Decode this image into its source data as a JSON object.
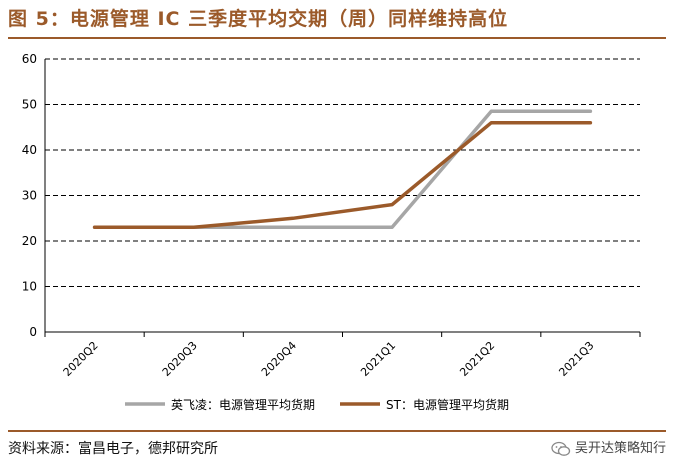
{
  "title": "图 5：电源管理 IC 三季度平均交期（周）同样维持高位",
  "source": "资料来源：富昌电子，德邦研究所",
  "watermark": {
    "text": "吴开达策略知行",
    "icon": "wechat-icon"
  },
  "colors": {
    "title": "#9b5a2a",
    "series1": "#a6a6a6",
    "series2": "#9b5a2a"
  },
  "chart_data": {
    "type": "line",
    "categories": [
      "2020Q2",
      "2020Q3",
      "2020Q4",
      "2021Q1",
      "2021Q2",
      "2021Q3"
    ],
    "series": [
      {
        "name": "英飞凌：电源管理平均货期",
        "values": [
          23,
          23,
          23,
          23,
          48.5,
          48.5
        ],
        "color": "#a6a6a6"
      },
      {
        "name": "ST：电源管理平均货期",
        "values": [
          23,
          23,
          25,
          28,
          46,
          46
        ],
        "color": "#9b5a2a"
      }
    ],
    "ylim": [
      0,
      60
    ],
    "yticks": [
      0,
      10,
      20,
      30,
      40,
      50,
      60
    ],
    "grid": "horizontal-dashed",
    "legend": "bottom"
  }
}
